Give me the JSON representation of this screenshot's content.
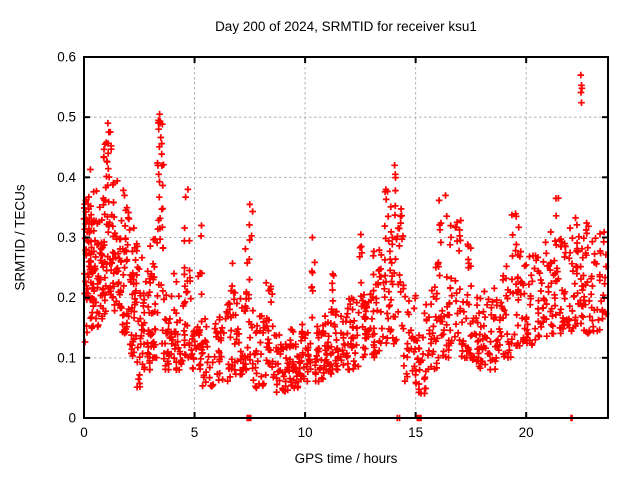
{
  "chart_data": {
    "type": "scatter",
    "title": "Day 200 of 2024, SRMTID for receiver ksu1",
    "xlabel": "GPS time / hours",
    "ylabel": "SRMTID / TECUs",
    "xlim": [
      0,
      23.7
    ],
    "ylim": [
      0,
      0.6
    ],
    "xticks": {
      "values": [
        0,
        5,
        10,
        15,
        20
      ],
      "labels": [
        "0",
        "5",
        "10",
        "15",
        "20"
      ]
    },
    "yticks": {
      "values": [
        0,
        0.1,
        0.2,
        0.3,
        0.4,
        0.5,
        0.6
      ],
      "labels": [
        "0",
        "0.1",
        "0.2",
        "0.3",
        "0.4",
        "0.5",
        "0.6"
      ]
    },
    "grid": {
      "show": true,
      "style": "dashed",
      "color": "#b0b0b0"
    },
    "legend": "none",
    "marker": {
      "shape": "plus",
      "color": "#ff0000",
      "size": 6.6,
      "stroke_width": 1.7
    },
    "frame_color": "#000000",
    "background": "#ffffff",
    "seed": 20024,
    "point_bands": [
      [
        0.0,
        0.35,
        50,
        0.19,
        0.36,
        1.2
      ],
      [
        0.0,
        0.4,
        7,
        0.12,
        0.19,
        1.0
      ],
      [
        0.05,
        0.6,
        8,
        0.32,
        0.42,
        1.0
      ],
      [
        0.35,
        0.7,
        40,
        0.15,
        0.33,
        1.3
      ],
      [
        0.7,
        1.0,
        36,
        0.16,
        0.38,
        1.2
      ],
      [
        0.85,
        1.05,
        6,
        0.36,
        0.46,
        1.0
      ],
      [
        1.0,
        1.35,
        40,
        0.2,
        0.45,
        1.3
      ],
      [
        1.0,
        1.25,
        5,
        0.42,
        0.49,
        1.0
      ],
      [
        1.35,
        1.7,
        36,
        0.17,
        0.4,
        1.4
      ],
      [
        1.7,
        2.05,
        34,
        0.14,
        0.41,
        1.5
      ],
      [
        2.05,
        2.35,
        32,
        0.1,
        0.32,
        1.5
      ],
      [
        2.35,
        2.65,
        30,
        0.05,
        0.3,
        1.4
      ],
      [
        2.65,
        3.0,
        30,
        0.08,
        0.28,
        1.5
      ],
      [
        3.0,
        3.3,
        26,
        0.1,
        0.3,
        1.5
      ],
      [
        3.3,
        3.6,
        26,
        0.12,
        0.47,
        1.2
      ],
      [
        3.35,
        3.55,
        8,
        0.4,
        0.505,
        1.0
      ],
      [
        3.6,
        4.05,
        28,
        0.08,
        0.22,
        1.4
      ],
      [
        4.05,
        4.5,
        28,
        0.08,
        0.24,
        1.5
      ],
      [
        4.5,
        4.85,
        30,
        0.1,
        0.38,
        1.8
      ],
      [
        4.85,
        5.3,
        28,
        0.08,
        0.2,
        1.4
      ],
      [
        5.15,
        5.35,
        6,
        0.2,
        0.33,
        1.0
      ],
      [
        5.3,
        5.85,
        26,
        0.05,
        0.18,
        1.3
      ],
      [
        5.85,
        6.35,
        24,
        0.06,
        0.17,
        1.3
      ],
      [
        6.35,
        6.85,
        24,
        0.06,
        0.2,
        1.5
      ],
      [
        6.6,
        6.9,
        5,
        0.2,
        0.27,
        1.0
      ],
      [
        6.85,
        7.3,
        26,
        0.07,
        0.2,
        1.4
      ],
      [
        7.3,
        7.65,
        28,
        0.08,
        0.36,
        1.6
      ],
      [
        7.65,
        8.2,
        28,
        0.05,
        0.17,
        1.3
      ],
      [
        8.2,
        8.7,
        30,
        0.06,
        0.23,
        1.6
      ],
      [
        8.7,
        9.3,
        36,
        0.04,
        0.14,
        1.2
      ],
      [
        9.3,
        9.8,
        38,
        0.05,
        0.15,
        1.3
      ],
      [
        9.8,
        10.25,
        34,
        0.06,
        0.16,
        1.3
      ],
      [
        10.25,
        10.45,
        7,
        0.15,
        0.3,
        1.0
      ],
      [
        10.45,
        10.85,
        30,
        0.06,
        0.16,
        1.3
      ],
      [
        10.85,
        11.3,
        32,
        0.07,
        0.18,
        1.3
      ],
      [
        11.1,
        11.3,
        6,
        0.17,
        0.24,
        1.0
      ],
      [
        11.3,
        11.9,
        34,
        0.08,
        0.19,
        1.2
      ],
      [
        11.9,
        12.45,
        34,
        0.08,
        0.2,
        1.3
      ],
      [
        12.45,
        12.62,
        8,
        0.18,
        0.31,
        1.0
      ],
      [
        12.6,
        13.05,
        36,
        0.1,
        0.22,
        1.3
      ],
      [
        13.05,
        13.55,
        36,
        0.1,
        0.28,
        1.4
      ],
      [
        13.55,
        14.0,
        36,
        0.12,
        0.38,
        1.5
      ],
      [
        14.0,
        14.45,
        30,
        0.12,
        0.42,
        1.4
      ],
      [
        14.45,
        15.0,
        28,
        0.06,
        0.22,
        1.4
      ],
      [
        15.0,
        15.55,
        30,
        0.04,
        0.2,
        1.3
      ],
      [
        15.55,
        16.0,
        28,
        0.08,
        0.26,
        1.5
      ],
      [
        16.0,
        16.5,
        32,
        0.1,
        0.37,
        1.5
      ],
      [
        16.5,
        17.05,
        34,
        0.12,
        0.33,
        1.5
      ],
      [
        17.05,
        17.55,
        32,
        0.1,
        0.3,
        1.6
      ],
      [
        17.55,
        18.1,
        32,
        0.08,
        0.21,
        1.3
      ],
      [
        18.1,
        18.7,
        32,
        0.08,
        0.23,
        1.4
      ],
      [
        18.7,
        19.3,
        32,
        0.1,
        0.26,
        1.4
      ],
      [
        19.3,
        19.8,
        32,
        0.12,
        0.34,
        1.6
      ],
      [
        19.8,
        20.4,
        32,
        0.12,
        0.27,
        1.4
      ],
      [
        20.4,
        21.0,
        32,
        0.13,
        0.3,
        1.4
      ],
      [
        21.0,
        21.55,
        34,
        0.14,
        0.37,
        1.5
      ],
      [
        21.55,
        22.05,
        34,
        0.14,
        0.33,
        1.4
      ],
      [
        22.05,
        22.55,
        36,
        0.15,
        0.35,
        1.3
      ],
      [
        22.55,
        23.05,
        34,
        0.14,
        0.33,
        1.3
      ],
      [
        23.05,
        23.62,
        30,
        0.13,
        0.31,
        1.3
      ]
    ],
    "fixed_points": [
      [
        22.47,
        0.57
      ],
      [
        22.5,
        0.553
      ],
      [
        22.52,
        0.548
      ],
      [
        22.48,
        0.541
      ],
      [
        22.5,
        0.524
      ],
      [
        0.95,
        0.455
      ],
      [
        1.08,
        0.49
      ],
      [
        1.12,
        0.475
      ],
      [
        3.42,
        0.505
      ],
      [
        3.45,
        0.49
      ],
      [
        3.38,
        0.48
      ],
      [
        4.7,
        0.38
      ],
      [
        7.5,
        0.355
      ],
      [
        10.33,
        0.3
      ],
      [
        12.52,
        0.305
      ],
      [
        13.62,
        0.376
      ],
      [
        14.05,
        0.42
      ],
      [
        14.08,
        0.405
      ],
      [
        16.35,
        0.37
      ],
      [
        19.55,
        0.335
      ],
      [
        21.35,
        0.365
      ]
    ],
    "zero_points": [
      7.38,
      7.42,
      7.46,
      7.5,
      7.54,
      14.17,
      14.27,
      15.08,
      15.12,
      15.16,
      15.2,
      15.24,
      22.03,
      22.07
    ]
  }
}
